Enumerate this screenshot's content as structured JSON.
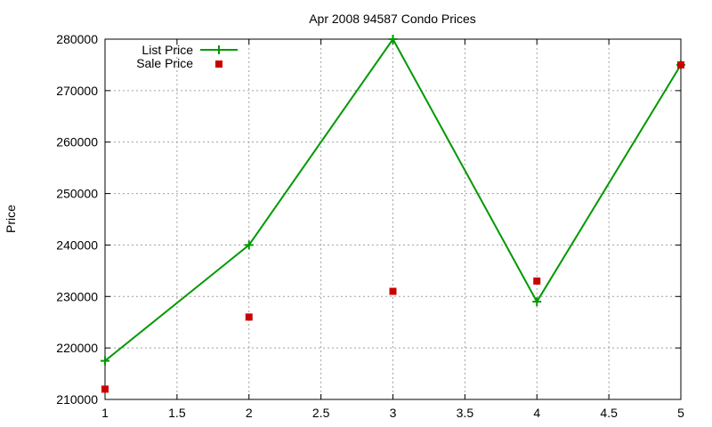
{
  "chart_data": {
    "type": "line",
    "title": "Apr 2008 94587 Condo Prices",
    "xlabel": "",
    "ylabel": "Price",
    "xlim": [
      1,
      5
    ],
    "ylim": [
      210000,
      280000
    ],
    "x_ticks": [
      1,
      1.5,
      2,
      2.5,
      3,
      3.5,
      4,
      4.5,
      5
    ],
    "x_tick_labels": [
      "1",
      "1.5",
      "2",
      "2.5",
      "3",
      "3.5",
      "4",
      "4.5",
      "5"
    ],
    "y_ticks": [
      210000,
      220000,
      230000,
      240000,
      250000,
      260000,
      270000,
      280000
    ],
    "y_tick_labels": [
      "210000",
      "220000",
      "230000",
      "240000",
      "250000",
      "260000",
      "270000",
      "280000"
    ],
    "grid": true,
    "legend_position": "top-left",
    "series": [
      {
        "name": "List Price",
        "style": "linespoints",
        "marker": "plus",
        "color": "#009900",
        "x": [
          1,
          2,
          3,
          4,
          5
        ],
        "y": [
          217500,
          240000,
          280000,
          229000,
          275000
        ]
      },
      {
        "name": "Sale Price",
        "style": "points",
        "marker": "square",
        "color": "#cc0000",
        "x": [
          1,
          2,
          3,
          4,
          5
        ],
        "y": [
          212000,
          226000,
          231000,
          233000,
          275000
        ]
      }
    ]
  }
}
